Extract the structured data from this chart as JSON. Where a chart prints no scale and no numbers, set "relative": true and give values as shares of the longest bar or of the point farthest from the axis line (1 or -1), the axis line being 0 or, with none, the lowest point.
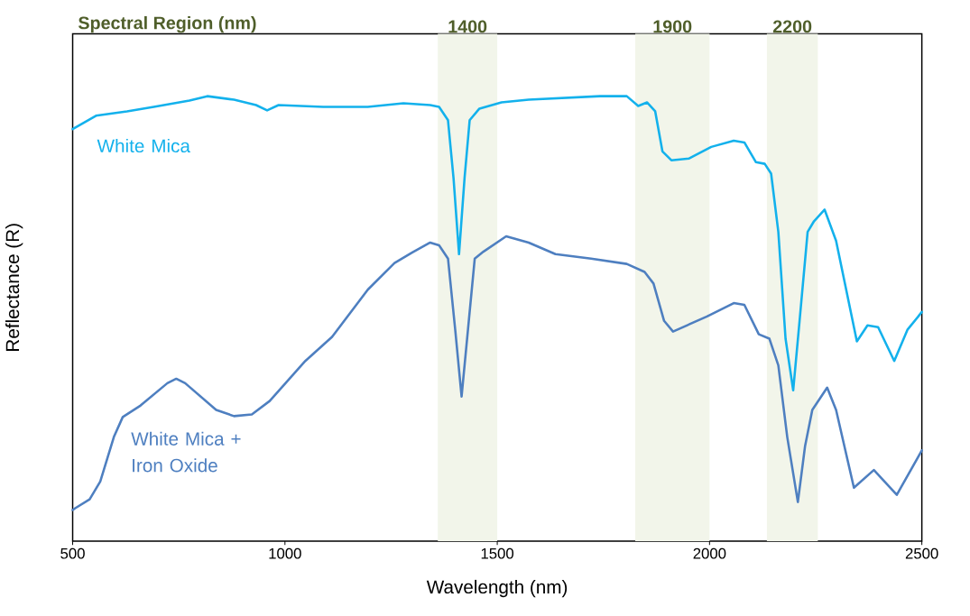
{
  "chart_data": {
    "type": "line",
    "relative": true,
    "xlabel": "Wavelength (nm)",
    "ylabel": "Reflectance (R)",
    "annotations": [
      "Spectral Region (nm)"
    ],
    "xlim": [
      500,
      2500
    ],
    "xticks": [
      500,
      1000,
      1500,
      2000,
      2500
    ],
    "bands": [
      {
        "axis": "x",
        "from": 1360,
        "to": 1500,
        "label": "1400",
        "color": "#f2f5ea"
      },
      {
        "axis": "x",
        "from": 1825,
        "to": 2000,
        "label": "1900",
        "color": "#f2f5ea"
      },
      {
        "axis": "x",
        "from": 2135,
        "to": 2255,
        "label": "2200",
        "color": "#f2f5ea"
      }
    ],
    "series": [
      {
        "name": "White Mica",
        "color": "#13b1ec",
        "x": [
          500,
          555,
          628,
          691,
          775,
          817,
          880,
          932,
          958,
          985,
          1090,
          1195,
          1279,
          1342,
          1363,
          1384,
          1397,
          1410,
          1423,
          1435,
          1458,
          1510,
          1574,
          1742,
          1805,
          1832,
          1853,
          1872,
          1889,
          1910,
          1952,
          2004,
          2057,
          2082,
          2109,
          2130,
          2145,
          2162,
          2179,
          2197,
          2212,
          2231,
          2246,
          2271,
          2298,
          2347,
          2372,
          2397,
          2435,
          2466,
          2500
        ],
        "values": [
          0.926,
          0.956,
          0.966,
          0.976,
          0.99,
          1,
          0.992,
          0.98,
          0.968,
          0.98,
          0.976,
          0.976,
          0.984,
          0.98,
          0.976,
          0.946,
          0.816,
          0.645,
          0.816,
          0.946,
          0.972,
          0.986,
          0.992,
          1,
          1,
          0.978,
          0.986,
          0.966,
          0.876,
          0.856,
          0.86,
          0.886,
          0.9,
          0.896,
          0.852,
          0.848,
          0.826,
          0.695,
          0.455,
          0.339,
          0.495,
          0.695,
          0.719,
          0.745,
          0.675,
          0.449,
          0.485,
          0.481,
          0.405,
          0.475,
          0.515
        ]
      },
      {
        "name": "White Mica + Iron Oxide",
        "color": "#4e7fc0",
        "x": [
          500,
          506,
          540,
          565,
          597,
          618,
          660,
          723,
          744,
          765,
          838,
          880,
          922,
          964,
          1048,
          1111,
          1195,
          1258,
          1300,
          1342,
          1363,
          1384,
          1401,
          1416,
          1431,
          1447,
          1468,
          1521,
          1574,
          1637,
          1721,
          1805,
          1847,
          1868,
          1893,
          1914,
          1994,
          2057,
          2082,
          2116,
          2141,
          2162,
          2183,
          2208,
          2225,
          2242,
          2277,
          2298,
          2340,
          2387,
          2441,
          2500
        ],
        "values": [
          0.07,
          0.074,
          0.094,
          0.134,
          0.234,
          0.279,
          0.305,
          0.355,
          0.365,
          0.355,
          0.295,
          0.281,
          0.285,
          0.315,
          0.405,
          0.459,
          0.565,
          0.625,
          0.649,
          0.671,
          0.665,
          0.635,
          0.475,
          0.325,
          0.475,
          0.635,
          0.651,
          0.685,
          0.671,
          0.645,
          0.635,
          0.623,
          0.605,
          0.579,
          0.495,
          0.471,
          0.505,
          0.535,
          0.531,
          0.465,
          0.455,
          0.395,
          0.234,
          0.088,
          0.214,
          0.295,
          0.345,
          0.295,
          0.12,
          0.16,
          0.104,
          0.204
        ]
      }
    ]
  }
}
